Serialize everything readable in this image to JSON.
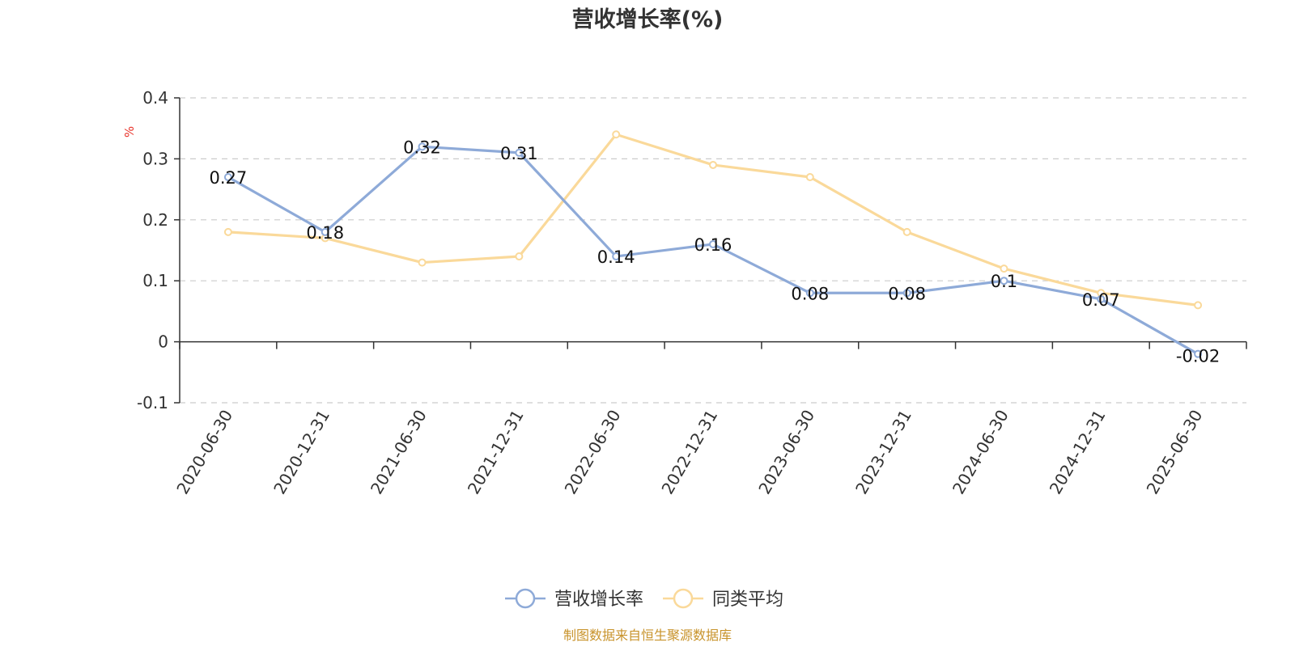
{
  "chart_data": {
    "type": "line",
    "title": "营收增长率(%)",
    "ylabel": "%",
    "x": [
      "2020-06-30",
      "2020-12-31",
      "2021-06-30",
      "2021-12-31",
      "2022-06-30",
      "2022-12-31",
      "2023-06-30",
      "2023-12-31",
      "2024-06-30",
      "2024-12-31",
      "2025-06-30"
    ],
    "ylim": [
      -0.1,
      0.4
    ],
    "yticks": [
      -0.1,
      0,
      0.1,
      0.2,
      0.3,
      0.4
    ],
    "ytick_labels": [
      "-0.1",
      "0",
      "0.1",
      "0.2",
      "0.3",
      "0.4"
    ],
    "grid": true,
    "legend_position": "bottom-center",
    "series": [
      {
        "name": "营收增长率",
        "color": "#8eaad8",
        "labeled": true,
        "values": [
          0.27,
          0.18,
          0.32,
          0.31,
          0.14,
          0.16,
          0.08,
          0.08,
          0.1,
          0.07,
          -0.02
        ],
        "labels": [
          "0.27",
          "0.18",
          "0.32",
          "0.31",
          "0.14",
          "0.16",
          "0.08",
          "0.08",
          "0.1",
          "0.07",
          "-0.02"
        ]
      },
      {
        "name": "同类平均",
        "color": "#fad99a",
        "labeled": false,
        "values": [
          0.18,
          0.17,
          0.13,
          0.14,
          0.34,
          0.29,
          0.27,
          0.18,
          0.12,
          0.08,
          0.06
        ]
      }
    ]
  },
  "source_text": "制图数据来自恒生聚源数据库",
  "colors": {
    "ylabel": "#e8332a",
    "source": "#c8932b",
    "axis": "#333333",
    "grid": "#cccccc"
  }
}
